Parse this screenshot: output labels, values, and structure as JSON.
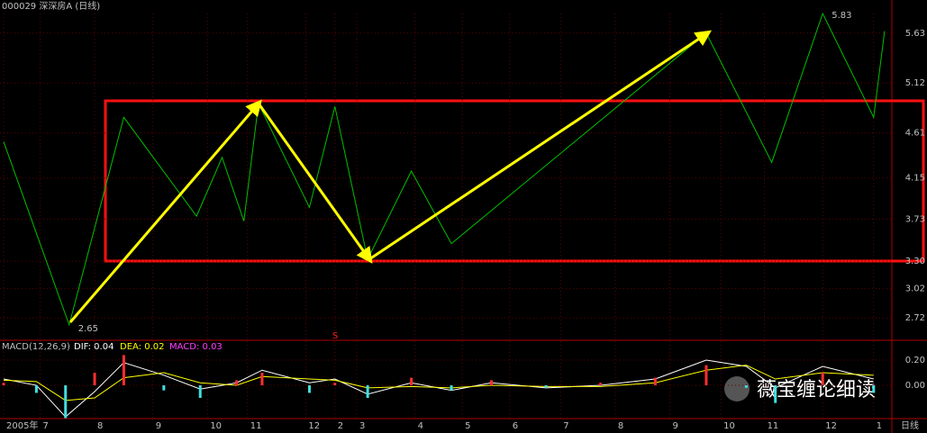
{
  "chart_data": [
    {
      "type": "line",
      "title": "000029 深深房A (日线)",
      "x": [
        1,
        19,
        34,
        54,
        61,
        67,
        71,
        85,
        92,
        101,
        113,
        124,
        194,
        212,
        226,
        240,
        243
      ],
      "series": [
        {
          "color": "#00c000",
          "values": [
            4.52,
            2.65,
            4.77,
            3.76,
            4.36,
            3.71,
            4.91,
            3.85,
            4.88,
            3.32,
            4.22,
            3.48,
            5.63,
            4.31,
            5.83,
            4.77,
            5.65
          ]
        }
      ],
      "annotations": [
        {
          "text": "2.65",
          "x": 19,
          "y": 2.65
        },
        {
          "text": "5.83",
          "x": 226,
          "y": 5.83
        }
      ],
      "xlim": [
        0,
        245
      ],
      "xticks": [
        {
          "value": 1,
          "label": "2005年"
        },
        {
          "value": 11,
          "label": "7"
        },
        {
          "value": 26,
          "label": "8"
        },
        {
          "value": 42,
          "label": "9"
        },
        {
          "value": 57,
          "label": "10"
        },
        {
          "value": 68,
          "label": "11"
        },
        {
          "value": 84,
          "label": "12"
        },
        {
          "value": 92,
          "label": "2"
        },
        {
          "value": 98,
          "label": "3"
        },
        {
          "value": 114,
          "label": "4"
        },
        {
          "value": 127,
          "label": "5"
        },
        {
          "value": 140,
          "label": "6"
        },
        {
          "value": 154,
          "label": "7"
        },
        {
          "value": 169,
          "label": "8"
        },
        {
          "value": 184,
          "label": "9"
        },
        {
          "value": 198,
          "label": "10"
        },
        {
          "value": 210,
          "label": "11"
        },
        {
          "value": 226,
          "label": "12"
        },
        {
          "value": 240,
          "label": "1"
        }
      ],
      "ylim": [
        2.52,
        5.83
      ],
      "yticks": [
        5.63,
        5.12,
        4.61,
        4.15,
        3.73,
        {
          "value": 3.3,
          "label": "3.30"
        },
        3.02,
        2.72
      ],
      "grid": true,
      "marker": "S",
      "period": "日线"
    },
    {
      "type": "macd",
      "title": "MACD(12,26,9)",
      "labels": [
        "DIF: 0.04",
        "DEA: 0.02",
        "MACD: 0.03"
      ],
      "x": [
        1,
        10,
        18,
        26,
        34,
        45,
        55,
        65,
        72,
        85,
        92,
        101,
        113,
        124,
        135,
        150,
        165,
        180,
        194,
        205,
        213,
        226,
        240
      ],
      "series": [
        {
          "name": "DIF",
          "color": "#ffffff",
          "values": [
            0.05,
            0,
            -0.25,
            -0.05,
            0.18,
            0.08,
            -0.03,
            0.02,
            0.12,
            0.02,
            0.05,
            -0.07,
            0.02,
            -0.04,
            0.02,
            -0.02,
            0,
            0.05,
            0.2,
            0.15,
            -0.02,
            0.15,
            0.05
          ]
        },
        {
          "name": "DEA",
          "color": "#ffff00",
          "values": [
            0.04,
            0.03,
            -0.12,
            -0.1,
            0.06,
            0.1,
            0.02,
            0,
            0.07,
            0.05,
            0.04,
            -0.02,
            -0.01,
            -0.02,
            0,
            -0.01,
            -0.01,
            0.02,
            0.12,
            0.16,
            0.05,
            0.1,
            0.08
          ]
        },
        {
          "name": "MACD",
          "color": "#ff3030",
          "values": [
            0.02,
            -0.06,
            -0.26,
            0.1,
            0.24,
            -0.04,
            -0.1,
            0.04,
            0.1,
            -0.06,
            0.02,
            -0.1,
            0.06,
            -0.04,
            0.04,
            -0.02,
            0.02,
            0.06,
            0.16,
            -0.02,
            -0.14,
            0.1,
            -0.06
          ]
        }
      ],
      "xlim": [
        0,
        245
      ],
      "ylim": [
        -0.264,
        0.343
      ],
      "yticks": [
        {
          "value": 0.2,
          "label": "0.20"
        },
        {
          "value": 0,
          "label": "0.00"
        }
      ]
    },
    {
      "type": "watermark",
      "text": "薇宝缠论细读"
    }
  ]
}
